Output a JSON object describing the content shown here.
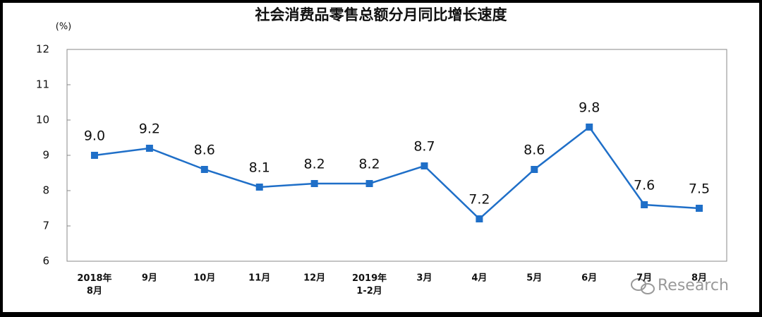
{
  "chart_data": {
    "type": "line",
    "title": "社会消费品零售总额分月同比增长速度",
    "y_label": "(%)",
    "categories": [
      "2018年\n8月",
      "9月",
      "10月",
      "11月",
      "12月",
      "2019年\n1-2月",
      "3月",
      "4月",
      "5月",
      "6月",
      "7月",
      "8月"
    ],
    "series": [
      {
        "color": "#1f6fc8",
        "values": [
          9.0,
          9.2,
          8.6,
          8.1,
          8.2,
          8.2,
          8.7,
          7.2,
          8.6,
          9.8,
          7.6,
          7.5
        ],
        "value_labels": [
          "9.0",
          "9.2",
          "8.6",
          "8.1",
          "8.2",
          "8.2",
          "8.7",
          "7.2",
          "8.6",
          "9.8",
          "7.6",
          "7.5"
        ]
      }
    ],
    "ylim": [
      6,
      12
    ],
    "yticks": [
      6,
      7,
      8,
      9,
      10,
      11,
      12
    ],
    "grid": false,
    "watermark": "Research"
  }
}
